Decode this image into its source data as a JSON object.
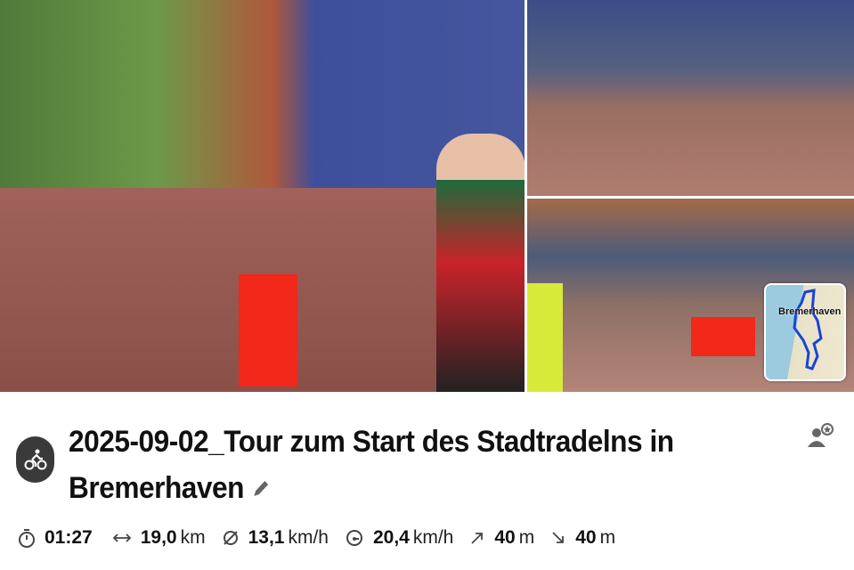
{
  "photos": {
    "map_thumbnail_label": "Bremerhaven"
  },
  "tour": {
    "sport_icon": "bicycle-icon",
    "title": "2025-09-02_Tour zum Start des Stadtradelns in Bremerhaven",
    "edit_icon": "pencil-icon",
    "follow_icon": "user-star-icon"
  },
  "stats": [
    {
      "icon": "stopwatch-icon",
      "value": "01:27",
      "unit": ""
    },
    {
      "icon": "distance-icon",
      "value": "19,0",
      "unit": "km"
    },
    {
      "icon": "average-speed-icon",
      "value": "13,1",
      "unit": "km/h"
    },
    {
      "icon": "max-speed-icon",
      "value": "20,4",
      "unit": "km/h"
    },
    {
      "icon": "ascent-icon",
      "value": "40",
      "unit": "m"
    },
    {
      "icon": "descent-icon",
      "value": "40",
      "unit": "m"
    }
  ]
}
